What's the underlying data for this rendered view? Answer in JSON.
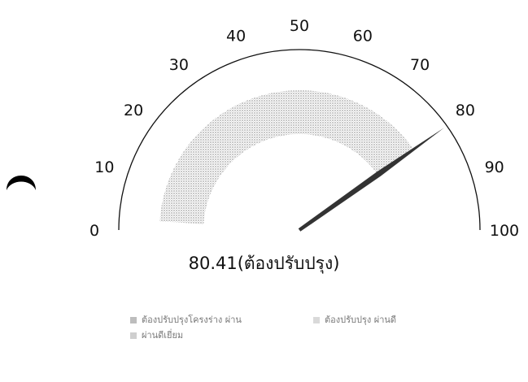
{
  "chart_data": {
    "type": "gauge",
    "min": 0,
    "max": 100,
    "ticks": [
      0,
      10,
      20,
      30,
      40,
      50,
      60,
      70,
      80,
      90,
      100
    ],
    "value": 80.41,
    "value_text": "80.41(ต้องปรับปรุง)",
    "legend": [
      {
        "label": "ต้องปรับปรุงโครงร่าง ผ่าน",
        "color": "#bdbdbd"
      },
      {
        "label": "ต้องปรับปรุง ผ่านดี",
        "color": "#d9d9d9"
      },
      {
        "label": "ผ่านดีเยี่ยม",
        "color": "#cfcfcf"
      }
    ],
    "colors": {
      "band": "#9e9e9e",
      "needle": "#333333",
      "arc": "#111111"
    }
  },
  "icons": {
    "side": "crescent-moon-icon"
  }
}
